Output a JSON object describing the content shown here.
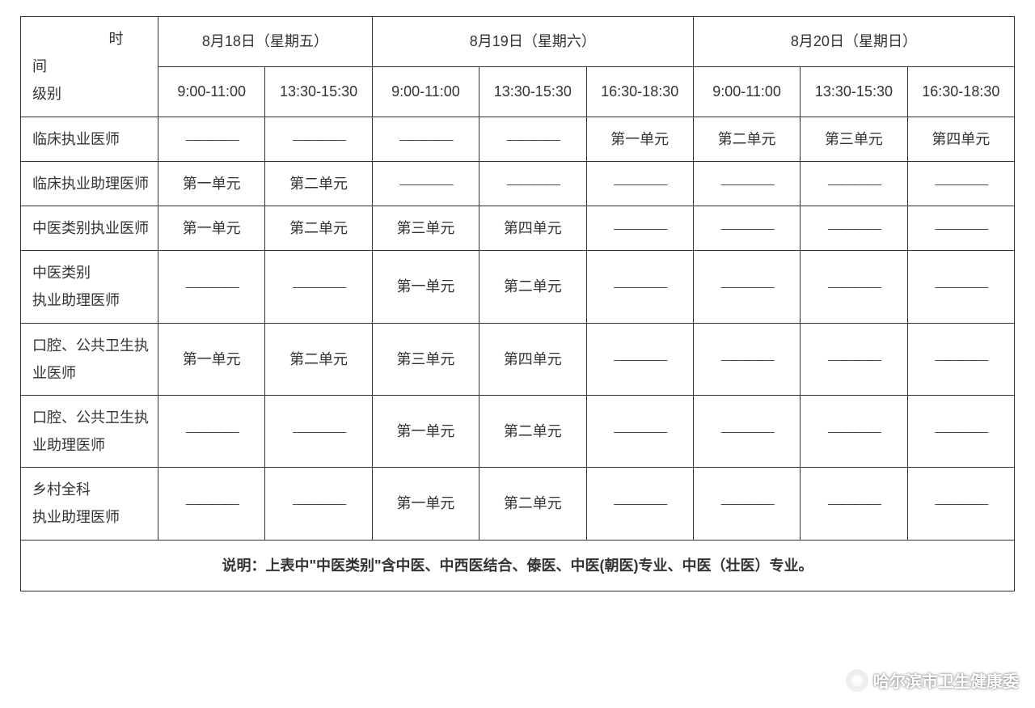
{
  "table": {
    "border_color": "#333333",
    "text_color": "#333333",
    "font_size": 18,
    "header": {
      "corner_top": "时",
      "corner_mid": "间",
      "corner_bottom": "级别",
      "days": [
        {
          "label": "8月18日（星期五）",
          "slots": [
            "9:00-11:00",
            "13:30-15:30"
          ]
        },
        {
          "label": "8月19日（星期六）",
          "slots": [
            "9:00-11:00",
            "13:30-15:30",
            "16:30-18:30"
          ]
        },
        {
          "label": "8月20日（星期日）",
          "slots": [
            "9:00-11:00",
            "13:30-15:30",
            "16:30-18:30"
          ]
        }
      ]
    },
    "dash": "————",
    "unit_prefix": "第",
    "unit_suffix": "单元",
    "units": [
      "第一单元",
      "第二单元",
      "第三单元",
      "第四单元"
    ],
    "rows": [
      {
        "label": "临床执业医师",
        "cells": [
          "dash",
          "dash",
          "dash",
          "dash",
          "u1",
          "u2",
          "u3",
          "u4"
        ]
      },
      {
        "label": "临床执业助理医师",
        "cells": [
          "u1",
          "u2",
          "dash",
          "dash",
          "dash",
          "dash",
          "dash",
          "dash"
        ]
      },
      {
        "label": "中医类别执业医师",
        "cells": [
          "u1",
          "u2",
          "u3",
          "u4",
          "dash",
          "dash",
          "dash",
          "dash"
        ]
      },
      {
        "label": "中医类别\n执业助理医师",
        "cells": [
          "dash",
          "dash",
          "u1",
          "u2",
          "dash",
          "dash",
          "dash",
          "dash"
        ]
      },
      {
        "label": "口腔、公共卫生执业医师",
        "cells": [
          "u1",
          "u2",
          "u3",
          "u4",
          "dash",
          "dash",
          "dash",
          "dash"
        ]
      },
      {
        "label": "口腔、公共卫生执业助理医师",
        "cells": [
          "dash",
          "dash",
          "u1",
          "u2",
          "dash",
          "dash",
          "dash",
          "dash"
        ]
      },
      {
        "label": "乡村全科\n执业助理医师",
        "cells": [
          "dash",
          "dash",
          "u1",
          "u2",
          "dash",
          "dash",
          "dash",
          "dash"
        ]
      }
    ],
    "footer": "说明：上表中\"中医类别\"含中医、中西医结合、傣医、中医(朝医)专业、中医（壮医）专业。"
  },
  "watermark": {
    "text": "哈尔滨市卫生健康委",
    "icon": "wechat-icon"
  }
}
